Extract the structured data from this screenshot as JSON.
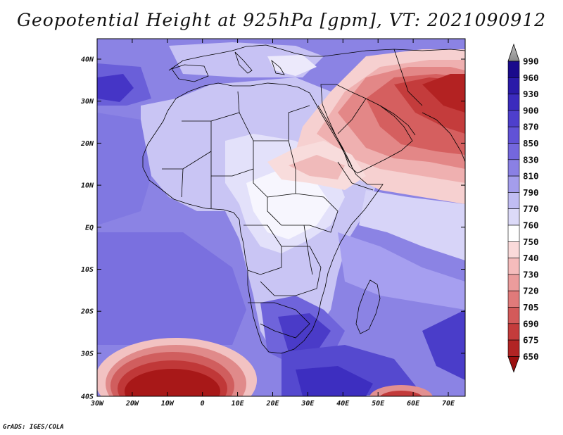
{
  "title": "Geopotential Height at 925hPa [gpm], VT: 2021090912",
  "credit": "GrADS: IGES/COLA",
  "map": {
    "lon_labels": [
      "30W",
      "20W",
      "10W",
      "0",
      "10E",
      "20E",
      "30E",
      "40E",
      "50E",
      "60E",
      "70E"
    ],
    "lat_labels": [
      "40N",
      "30N",
      "20N",
      "10N",
      "EQ",
      "10S",
      "20S",
      "30S",
      "40S"
    ]
  },
  "colorbar": {
    "levels": [
      "990",
      "960",
      "930",
      "900",
      "870",
      "850",
      "830",
      "810",
      "790",
      "770",
      "760",
      "750",
      "740",
      "730",
      "720",
      "705",
      "690",
      "675",
      "650"
    ],
    "colors": [
      "#1a0a8c",
      "#2a1aa8",
      "#3b2bbd",
      "#4e3fcc",
      "#6152d6",
      "#7467dd",
      "#8a80e4",
      "#a49dec",
      "#c1bdf3",
      "#dcdaf8",
      "#ffffff",
      "#fadada",
      "#f5bcbc",
      "#eb9c9c",
      "#e07a7a",
      "#d35a5a",
      "#c43c3c",
      "#b22424",
      "#9c1010"
    ]
  },
  "colors": {
    "ocean_base": "#8f87e6",
    "high_blue": "#3f2fc2",
    "low_red": "#b01818",
    "land_light": "#d4d1f6"
  }
}
